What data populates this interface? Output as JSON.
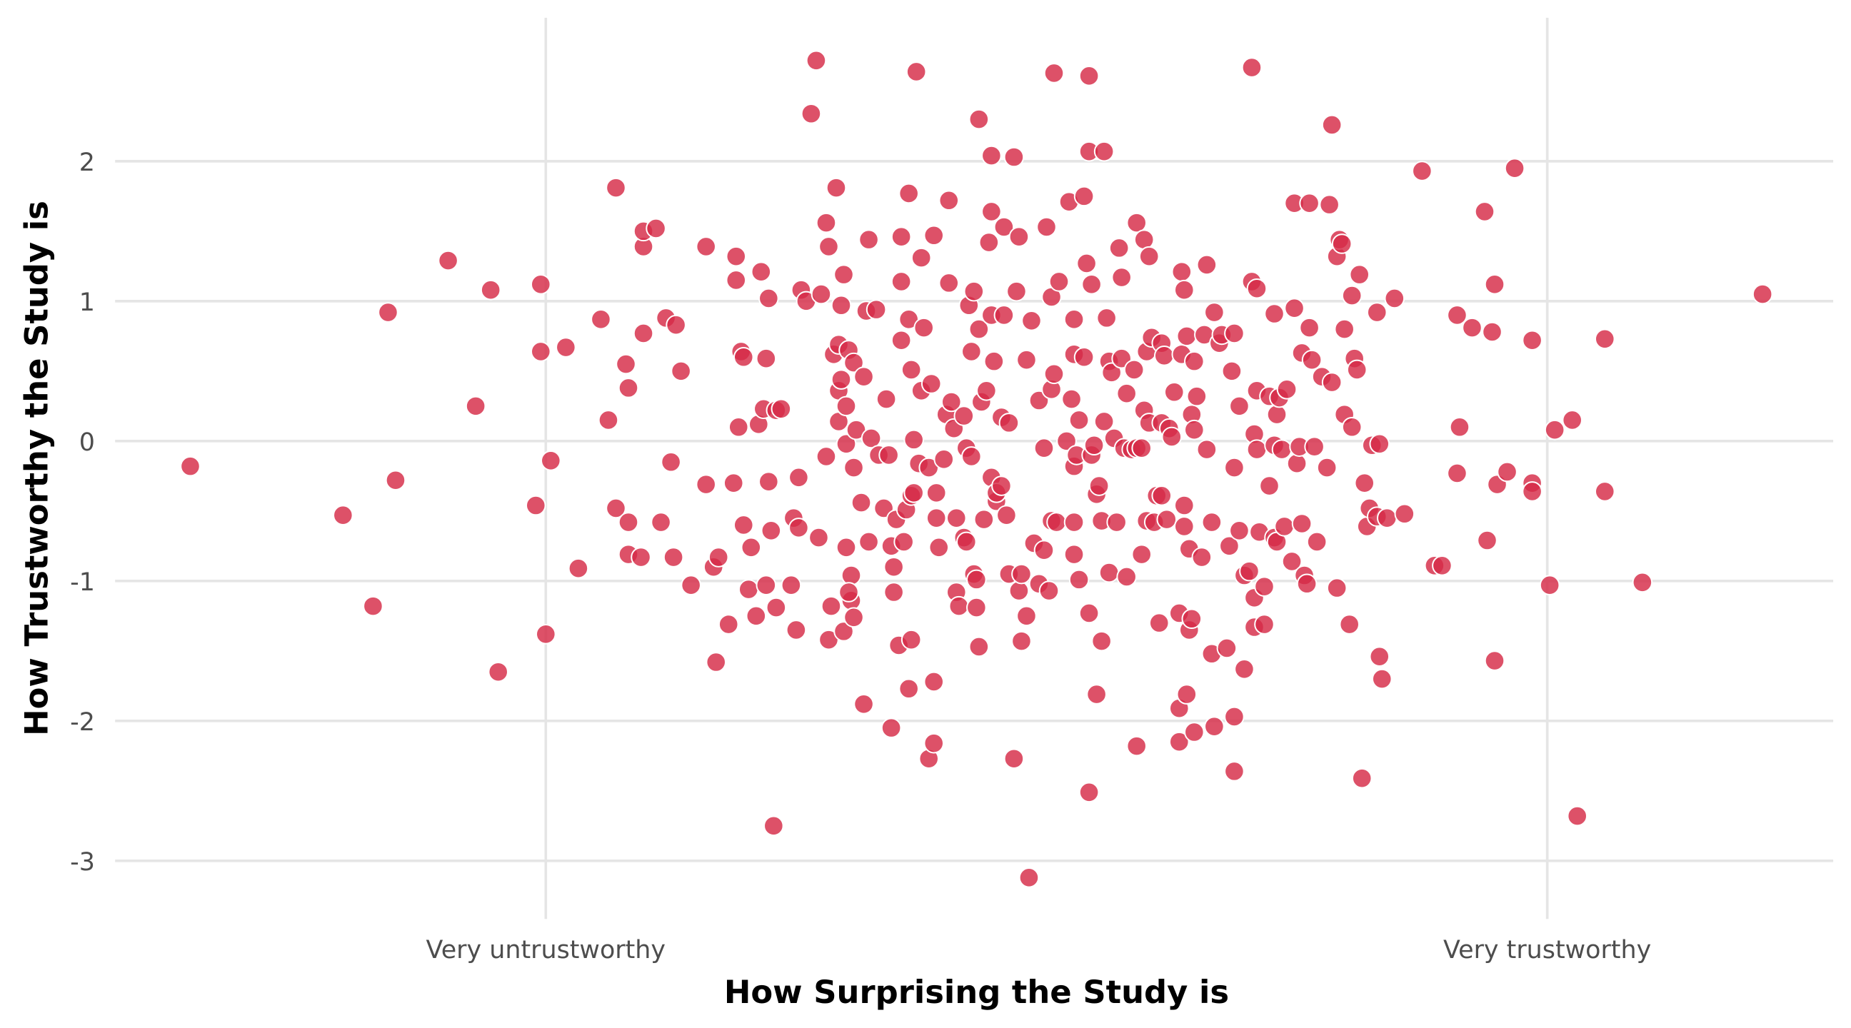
{
  "chart_data": {
    "type": "scatter",
    "title": "",
    "xlabel": "How Surprising the Study is",
    "ylabel": "How Trustworthy the Study is",
    "xlim": [
      -3.65,
      3.2
    ],
    "ylim": [
      -3.3,
      3.0
    ],
    "grid": true,
    "x_ticks": [
      {
        "value": -2,
        "label": "Very untrustworthy"
      },
      {
        "value": 2,
        "label": "Very trustworthy"
      }
    ],
    "y_ticks": [
      {
        "value": 2,
        "label": "2"
      },
      {
        "value": 1,
        "label": "1"
      },
      {
        "value": 0,
        "label": "0"
      },
      {
        "value": -1,
        "label": "-1"
      },
      {
        "value": -2,
        "label": "-2"
      },
      {
        "value": -3,
        "label": "-3"
      }
    ],
    "point_color": "#d62b47",
    "points": [
      [
        -3.42,
        -0.18
      ],
      [
        -2.81,
        -0.53
      ],
      [
        -2.69,
        -1.18
      ],
      [
        -2.6,
        -0.28
      ],
      [
        -2.63,
        0.92
      ],
      [
        -2.39,
        1.29
      ],
      [
        -2.28,
        0.25
      ],
      [
        -2.22,
        1.08
      ],
      [
        -2.19,
        -1.65
      ],
      [
        -2.04,
        -0.46
      ],
      [
        -2.02,
        1.12
      ],
      [
        -2.02,
        0.64
      ],
      [
        -2.0,
        -1.38
      ],
      [
        -1.98,
        -0.14
      ],
      [
        -1.92,
        0.67
      ],
      [
        -1.87,
        -0.91
      ],
      [
        -1.78,
        0.87
      ],
      [
        -1.75,
        0.15
      ],
      [
        -1.72,
        1.81
      ],
      [
        -1.72,
        -0.48
      ],
      [
        -1.68,
        0.55
      ],
      [
        -1.67,
        0.38
      ],
      [
        -1.67,
        -0.81
      ],
      [
        -1.67,
        -0.58
      ],
      [
        -1.62,
        -0.83
      ],
      [
        -1.61,
        1.39
      ],
      [
        -1.61,
        1.5
      ],
      [
        -1.56,
        1.52
      ],
      [
        -1.61,
        0.77
      ],
      [
        -1.52,
        0.88
      ],
      [
        -1.54,
        -0.58
      ],
      [
        -1.5,
        -0.15
      ],
      [
        -1.49,
        -0.83
      ],
      [
        -1.48,
        0.83
      ],
      [
        -1.46,
        0.5
      ],
      [
        -1.42,
        -1.03
      ],
      [
        -1.36,
        1.39
      ],
      [
        -1.36,
        -0.31
      ],
      [
        -1.33,
        -0.9
      ],
      [
        -1.32,
        -1.58
      ],
      [
        -1.31,
        -0.83
      ],
      [
        -1.27,
        -1.31
      ],
      [
        -1.25,
        -0.3
      ],
      [
        -1.24,
        1.32
      ],
      [
        -1.24,
        1.15
      ],
      [
        -1.23,
        0.1
      ],
      [
        -1.22,
        0.64
      ],
      [
        -1.21,
        -0.6
      ],
      [
        -1.21,
        0.6
      ],
      [
        -1.19,
        -1.06
      ],
      [
        -1.18,
        -0.76
      ],
      [
        -1.16,
        -1.25
      ],
      [
        -1.14,
        1.21
      ],
      [
        -1.15,
        0.12
      ],
      [
        -1.13,
        0.23
      ],
      [
        -1.12,
        0.59
      ],
      [
        -1.12,
        -1.03
      ],
      [
        -1.11,
        1.02
      ],
      [
        -1.11,
        -0.29
      ],
      [
        -1.1,
        -0.64
      ],
      [
        -1.09,
        -2.75
      ],
      [
        -1.08,
        -1.19
      ],
      [
        -1.08,
        0.22
      ],
      [
        -1.06,
        0.23
      ],
      [
        -1.02,
        -1.03
      ],
      [
        -1.01,
        -0.55
      ],
      [
        -1.0,
        -1.35
      ],
      [
        -0.99,
        -0.26
      ],
      [
        -0.98,
        1.08
      ],
      [
        -0.99,
        -0.62
      ],
      [
        -0.96,
        1.0
      ],
      [
        -0.94,
        2.34
      ],
      [
        -0.92,
        2.72
      ],
      [
        -0.91,
        -0.69
      ],
      [
        -0.9,
        1.05
      ],
      [
        -0.88,
        -0.11
      ],
      [
        -0.88,
        1.56
      ],
      [
        -0.87,
        1.39
      ],
      [
        -0.87,
        -1.42
      ],
      [
        -0.84,
        1.81
      ],
      [
        -0.86,
        -1.18
      ],
      [
        -0.83,
        0.36
      ],
      [
        -0.85,
        0.62
      ],
      [
        -0.83,
        0.69
      ],
      [
        -0.82,
        0.44
      ],
      [
        -0.83,
        0.14
      ],
      [
        -0.82,
        0.97
      ],
      [
        -0.81,
        -1.36
      ],
      [
        -0.81,
        1.19
      ],
      [
        -0.8,
        -0.02
      ],
      [
        -0.8,
        -0.76
      ],
      [
        -0.8,
        0.25
      ],
      [
        -0.78,
        -0.96
      ],
      [
        -0.79,
        0.65
      ],
      [
        -0.78,
        -1.14
      ],
      [
        -0.79,
        -1.08
      ],
      [
        -0.77,
        0.56
      ],
      [
        -0.77,
        -0.19
      ],
      [
        -0.77,
        -1.26
      ],
      [
        -0.76,
        0.08
      ],
      [
        -0.74,
        -0.44
      ],
      [
        -0.73,
        -1.88
      ],
      [
        -0.73,
        0.46
      ],
      [
        -0.72,
        0.93
      ],
      [
        -0.71,
        1.44
      ],
      [
        -0.71,
        -0.72
      ],
      [
        -0.7,
        0.02
      ],
      [
        -0.68,
        0.94
      ],
      [
        -0.67,
        -0.1
      ],
      [
        -0.65,
        -0.48
      ],
      [
        -0.64,
        0.3
      ],
      [
        -0.63,
        -0.1
      ],
      [
        -0.62,
        -2.05
      ],
      [
        -0.62,
        -0.75
      ],
      [
        -0.61,
        -1.08
      ],
      [
        -0.61,
        -0.9
      ],
      [
        -0.6,
        -0.56
      ],
      [
        -0.59,
        -1.46
      ],
      [
        -0.58,
        0.72
      ],
      [
        -0.58,
        1.46
      ],
      [
        -0.58,
        1.14
      ],
      [
        -0.57,
        -0.72
      ],
      [
        -0.56,
        -0.49
      ],
      [
        -0.55,
        1.77
      ],
      [
        -0.55,
        0.87
      ],
      [
        -0.54,
        -1.42
      ],
      [
        -0.55,
        -1.77
      ],
      [
        -0.54,
        0.51
      ],
      [
        -0.54,
        -0.39
      ],
      [
        -0.53,
        0.01
      ],
      [
        -0.53,
        -0.37
      ],
      [
        -0.52,
        2.64
      ],
      [
        -0.51,
        -0.16
      ],
      [
        -0.5,
        1.31
      ],
      [
        -0.49,
        0.81
      ],
      [
        -0.5,
        0.36
      ],
      [
        -0.47,
        -2.27
      ],
      [
        -0.47,
        -0.19
      ],
      [
        -0.46,
        0.41
      ],
      [
        -0.45,
        -1.72
      ],
      [
        -0.45,
        -2.16
      ],
      [
        -0.45,
        1.47
      ],
      [
        -0.44,
        -0.37
      ],
      [
        -0.44,
        -0.55
      ],
      [
        -0.43,
        -0.76
      ],
      [
        -0.41,
        -0.13
      ],
      [
        -0.4,
        0.19
      ],
      [
        -0.39,
        1.72
      ],
      [
        -0.39,
        1.13
      ],
      [
        -0.38,
        0.28
      ],
      [
        -0.37,
        0.09
      ],
      [
        -0.36,
        -1.08
      ],
      [
        -0.36,
        -0.55
      ],
      [
        -0.35,
        -1.18
      ],
      [
        -0.33,
        -0.69
      ],
      [
        -0.33,
        0.18
      ],
      [
        -0.32,
        -0.72
      ],
      [
        -0.32,
        -0.05
      ],
      [
        -0.31,
        0.97
      ],
      [
        -0.3,
        -0.11
      ],
      [
        -0.3,
        0.64
      ],
      [
        -0.29,
        1.07
      ],
      [
        -0.29,
        -0.95
      ],
      [
        -0.28,
        -1.19
      ],
      [
        -0.28,
        -0.99
      ],
      [
        -0.27,
        -1.47
      ],
      [
        -0.27,
        2.3
      ],
      [
        -0.27,
        0.8
      ],
      [
        -0.26,
        0.28
      ],
      [
        -0.25,
        -0.56
      ],
      [
        -0.24,
        0.36
      ],
      [
        -0.23,
        1.42
      ],
      [
        -0.22,
        2.04
      ],
      [
        -0.22,
        -0.26
      ],
      [
        -0.22,
        0.9
      ],
      [
        -0.22,
        1.64
      ],
      [
        -0.21,
        0.57
      ],
      [
        -0.2,
        -0.43
      ],
      [
        -0.2,
        -0.37
      ],
      [
        -0.18,
        -0.32
      ],
      [
        -0.18,
        0.17
      ],
      [
        -0.17,
        0.9
      ],
      [
        -0.17,
        1.53
      ],
      [
        -0.16,
        -0.53
      ],
      [
        -0.15,
        -0.95
      ],
      [
        -0.15,
        0.13
      ],
      [
        -0.13,
        -2.27
      ],
      [
        -0.13,
        2.03
      ],
      [
        -0.12,
        1.07
      ],
      [
        -0.11,
        1.46
      ],
      [
        -0.11,
        -1.07
      ],
      [
        -0.1,
        -0.95
      ],
      [
        -0.1,
        -1.43
      ],
      [
        -0.08,
        -1.25
      ],
      [
        -0.08,
        0.58
      ],
      [
        -0.07,
        -3.12
      ],
      [
        -0.06,
        0.86
      ],
      [
        -0.05,
        -0.73
      ],
      [
        -0.03,
        0.29
      ],
      [
        -0.03,
        -1.02
      ],
      [
        -0.01,
        -0.05
      ],
      [
        -0.01,
        -0.78
      ],
      [
        0.0,
        1.53
      ],
      [
        0.01,
        -1.07
      ],
      [
        0.02,
        1.03
      ],
      [
        0.03,
        2.63
      ],
      [
        0.02,
        -0.57
      ],
      [
        0.02,
        0.37
      ],
      [
        0.03,
        0.48
      ],
      [
        0.04,
        -0.58
      ],
      [
        0.05,
        1.14
      ],
      [
        0.08,
        0.0
      ],
      [
        0.09,
        1.71
      ],
      [
        0.1,
        0.3
      ],
      [
        0.11,
        0.87
      ],
      [
        0.11,
        -0.18
      ],
      [
        0.11,
        0.62
      ],
      [
        0.11,
        -0.58
      ],
      [
        0.11,
        -0.81
      ],
      [
        0.12,
        -0.1
      ],
      [
        0.13,
        -0.99
      ],
      [
        0.13,
        0.15
      ],
      [
        0.15,
        0.6
      ],
      [
        0.15,
        1.75
      ],
      [
        0.16,
        1.27
      ],
      [
        0.17,
        2.61
      ],
      [
        0.17,
        2.07
      ],
      [
        0.17,
        -1.23
      ],
      [
        0.18,
        -0.1
      ],
      [
        0.18,
        1.12
      ],
      [
        0.17,
        -2.51
      ],
      [
        0.19,
        -0.03
      ],
      [
        0.2,
        -1.81
      ],
      [
        0.2,
        -0.38
      ],
      [
        0.21,
        -0.32
      ],
      [
        0.22,
        -0.57
      ],
      [
        0.22,
        -1.43
      ],
      [
        0.23,
        2.07
      ],
      [
        0.23,
        0.14
      ],
      [
        0.24,
        0.88
      ],
      [
        0.25,
        0.57
      ],
      [
        0.25,
        -0.94
      ],
      [
        0.26,
        0.49
      ],
      [
        0.27,
        0.02
      ],
      [
        0.28,
        -0.58
      ],
      [
        0.29,
        1.38
      ],
      [
        0.3,
        0.59
      ],
      [
        0.3,
        1.17
      ],
      [
        0.31,
        -0.05
      ],
      [
        0.32,
        0.34
      ],
      [
        0.32,
        -0.97
      ],
      [
        0.34,
        -0.06
      ],
      [
        0.35,
        0.51
      ],
      [
        0.36,
        1.56
      ],
      [
        0.36,
        -2.18
      ],
      [
        0.36,
        -0.05
      ],
      [
        0.38,
        -0.05
      ],
      [
        0.38,
        -0.81
      ],
      [
        0.39,
        1.44
      ],
      [
        0.39,
        0.22
      ],
      [
        0.4,
        0.64
      ],
      [
        0.4,
        -0.57
      ],
      [
        0.41,
        0.13
      ],
      [
        0.41,
        1.32
      ],
      [
        0.42,
        0.74
      ],
      [
        0.43,
        -0.58
      ],
      [
        0.44,
        -0.39
      ],
      [
        0.45,
        -1.3
      ],
      [
        0.46,
        0.7
      ],
      [
        0.46,
        0.13
      ],
      [
        0.46,
        -0.39
      ],
      [
        0.47,
        0.61
      ],
      [
        0.48,
        -0.56
      ],
      [
        0.49,
        0.09
      ],
      [
        0.5,
        0.03
      ],
      [
        0.51,
        0.35
      ],
      [
        0.53,
        -2.15
      ],
      [
        0.53,
        -1.91
      ],
      [
        0.53,
        -1.23
      ],
      [
        0.54,
        0.62
      ],
      [
        0.54,
        1.21
      ],
      [
        0.55,
        -0.46
      ],
      [
        0.55,
        1.08
      ],
      [
        0.55,
        -0.61
      ],
      [
        0.56,
        0.75
      ],
      [
        0.56,
        -1.81
      ],
      [
        0.57,
        -0.77
      ],
      [
        0.57,
        -1.35
      ],
      [
        0.58,
        0.19
      ],
      [
        0.58,
        -1.27
      ],
      [
        0.59,
        -2.08
      ],
      [
        0.59,
        0.08
      ],
      [
        0.59,
        0.57
      ],
      [
        0.6,
        0.32
      ],
      [
        0.62,
        -0.83
      ],
      [
        0.63,
        0.76
      ],
      [
        0.64,
        1.26
      ],
      [
        0.64,
        -0.06
      ],
      [
        0.66,
        -1.52
      ],
      [
        0.66,
        -0.58
      ],
      [
        0.67,
        0.92
      ],
      [
        0.67,
        -2.04
      ],
      [
        0.69,
        0.7
      ],
      [
        0.7,
        0.76
      ],
      [
        0.72,
        -1.48
      ],
      [
        0.73,
        -0.75
      ],
      [
        0.74,
        0.5
      ],
      [
        0.75,
        -1.97
      ],
      [
        0.75,
        0.77
      ],
      [
        0.75,
        -2.36
      ],
      [
        0.75,
        -0.19
      ],
      [
        0.77,
        0.25
      ],
      [
        0.77,
        -0.64
      ],
      [
        0.79,
        -1.63
      ],
      [
        0.79,
        -0.96
      ],
      [
        0.81,
        -0.93
      ],
      [
        0.82,
        2.67
      ],
      [
        0.82,
        1.14
      ],
      [
        0.83,
        -1.33
      ],
      [
        0.83,
        -1.12
      ],
      [
        0.83,
        0.05
      ],
      [
        0.84,
        1.09
      ],
      [
        0.84,
        -0.06
      ],
      [
        0.84,
        0.36
      ],
      [
        0.85,
        -0.65
      ],
      [
        0.87,
        -1.31
      ],
      [
        0.87,
        -1.04
      ],
      [
        0.89,
        0.32
      ],
      [
        0.89,
        -0.32
      ],
      [
        0.91,
        -0.03
      ],
      [
        0.91,
        -0.69
      ],
      [
        0.91,
        0.91
      ],
      [
        0.92,
        0.19
      ],
      [
        0.92,
        -0.72
      ],
      [
        0.93,
        0.31
      ],
      [
        0.94,
        -0.06
      ],
      [
        0.95,
        -0.61
      ],
      [
        0.96,
        0.37
      ],
      [
        0.98,
        -0.86
      ],
      [
        0.99,
        1.7
      ],
      [
        0.99,
        0.95
      ],
      [
        1.0,
        -0.16
      ],
      [
        1.01,
        -0.04
      ],
      [
        1.02,
        -0.59
      ],
      [
        1.02,
        0.63
      ],
      [
        1.03,
        -0.96
      ],
      [
        1.04,
        -1.02
      ],
      [
        1.05,
        0.81
      ],
      [
        1.05,
        1.7
      ],
      [
        1.06,
        0.58
      ],
      [
        1.07,
        -0.04
      ],
      [
        1.08,
        -0.72
      ],
      [
        1.1,
        0.46
      ],
      [
        1.12,
        -0.19
      ],
      [
        1.13,
        1.69
      ],
      [
        1.14,
        2.26
      ],
      [
        1.14,
        0.42
      ],
      [
        1.16,
        1.32
      ],
      [
        1.16,
        -1.05
      ],
      [
        1.17,
        1.44
      ],
      [
        1.18,
        1.41
      ],
      [
        1.19,
        0.19
      ],
      [
        1.19,
        0.8
      ],
      [
        1.21,
        -1.31
      ],
      [
        1.22,
        1.04
      ],
      [
        1.22,
        0.1
      ],
      [
        1.23,
        0.59
      ],
      [
        1.24,
        0.51
      ],
      [
        1.25,
        1.19
      ],
      [
        1.26,
        -2.41
      ],
      [
        1.27,
        -0.3
      ],
      [
        1.28,
        -0.61
      ],
      [
        1.29,
        -0.48
      ],
      [
        1.3,
        -0.03
      ],
      [
        1.32,
        0.92
      ],
      [
        1.32,
        -0.54
      ],
      [
        1.33,
        -0.02
      ],
      [
        1.33,
        -1.54
      ],
      [
        1.34,
        -1.7
      ],
      [
        1.36,
        -0.55
      ],
      [
        1.39,
        1.02
      ],
      [
        1.43,
        -0.52
      ],
      [
        1.5,
        1.93
      ],
      [
        1.55,
        -0.89
      ],
      [
        1.58,
        -0.89
      ],
      [
        1.64,
        -0.23
      ],
      [
        1.64,
        0.9
      ],
      [
        1.65,
        0.1
      ],
      [
        1.7,
        0.81
      ],
      [
        1.75,
        1.64
      ],
      [
        1.76,
        -0.71
      ],
      [
        1.78,
        0.78
      ],
      [
        1.79,
        1.12
      ],
      [
        1.79,
        -1.57
      ],
      [
        1.8,
        -0.31
      ],
      [
        1.84,
        -0.22
      ],
      [
        1.87,
        1.95
      ],
      [
        1.94,
        0.72
      ],
      [
        1.94,
        -0.3
      ],
      [
        1.94,
        -0.36
      ],
      [
        2.01,
        -1.03
      ],
      [
        2.03,
        0.08
      ],
      [
        2.1,
        0.15
      ],
      [
        2.12,
        -2.68
      ],
      [
        2.23,
        0.73
      ],
      [
        2.23,
        -0.36
      ],
      [
        2.38,
        -1.01
      ],
      [
        2.86,
        1.05
      ]
    ]
  }
}
